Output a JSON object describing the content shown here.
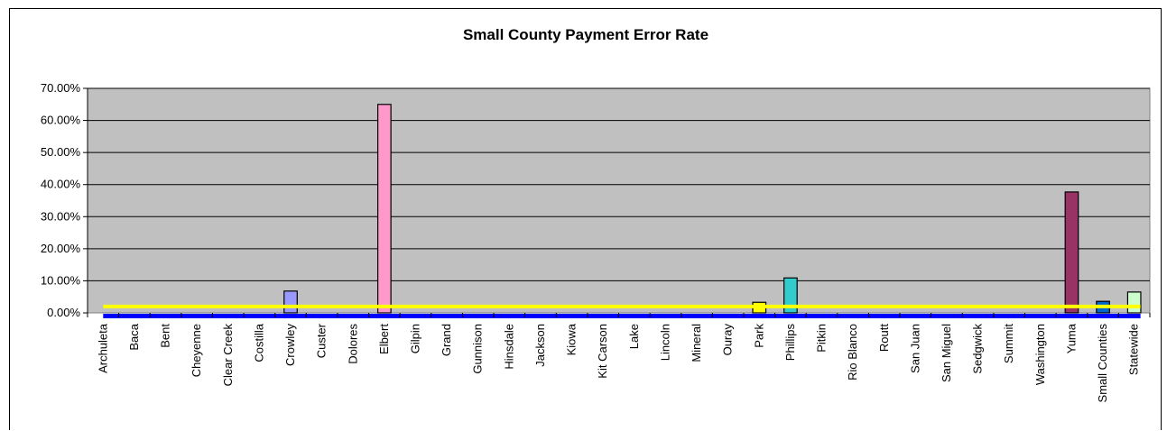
{
  "chart_data": {
    "type": "bar",
    "title": "Small County Payment Error Rate",
    "xlabel": "",
    "ylabel": "",
    "ylim": [
      0,
      0.7
    ],
    "y_ticks": [
      "0.00%",
      "10.00%",
      "20.00%",
      "30.00%",
      "40.00%",
      "50.00%",
      "60.00%",
      "70.00%"
    ],
    "y_tick_values": [
      0,
      0.1,
      0.2,
      0.3,
      0.4,
      0.5,
      0.6,
      0.7
    ],
    "grid": true,
    "legend": "none",
    "categories": [
      "Archuleta",
      "Baca",
      "Bent",
      "Cheyenne",
      "Clear Creek",
      "Costilla",
      "Crowley",
      "Custer",
      "Dolores",
      "Elbert",
      "Gilpin",
      "Grand",
      "Gunnison",
      "Hinsdale",
      "Jackson",
      "Kiowa",
      "Kit Carson",
      "Lake",
      "Lincoln",
      "Mineral",
      "Ouray",
      "Park",
      "Phillips",
      "Pitkin",
      "Rio Blanco",
      "Routt",
      "San Juan",
      "San Miguel",
      "Sedgwick",
      "Summit",
      "Washington",
      "Yuma",
      "Small Counties",
      "Statewide"
    ],
    "values": [
      0,
      0,
      0,
      0,
      0,
      0,
      0.068,
      0,
      0,
      0.65,
      0,
      0,
      0,
      0,
      0,
      0,
      0,
      0,
      0,
      0,
      0,
      0.033,
      0.109,
      0,
      0,
      0,
      0,
      0,
      0,
      0,
      0,
      0.377,
      0.036,
      0.065
    ],
    "bar_colors": [
      "#9999ff",
      "#9999ff",
      "#9999ff",
      "#9999ff",
      "#9999ff",
      "#9999ff",
      "#9999ff",
      "#9999ff",
      "#9999ff",
      "#ff99cc",
      "#9999ff",
      "#9999ff",
      "#9999ff",
      "#9999ff",
      "#9999ff",
      "#9999ff",
      "#9999ff",
      "#9999ff",
      "#9999ff",
      "#9999ff",
      "#9999ff",
      "#ffff00",
      "#33cccc",
      "#9999ff",
      "#9999ff",
      "#9999ff",
      "#9999ff",
      "#9999ff",
      "#9999ff",
      "#9999ff",
      "#9999ff",
      "#993366",
      "#0066cc",
      "#ccffcc"
    ],
    "reference_lines": [
      {
        "value": 0.02,
        "color": "#ffff00"
      },
      {
        "value": -0.01,
        "color": "#0000ff"
      }
    ],
    "plot_background": "#c0c0c0"
  }
}
